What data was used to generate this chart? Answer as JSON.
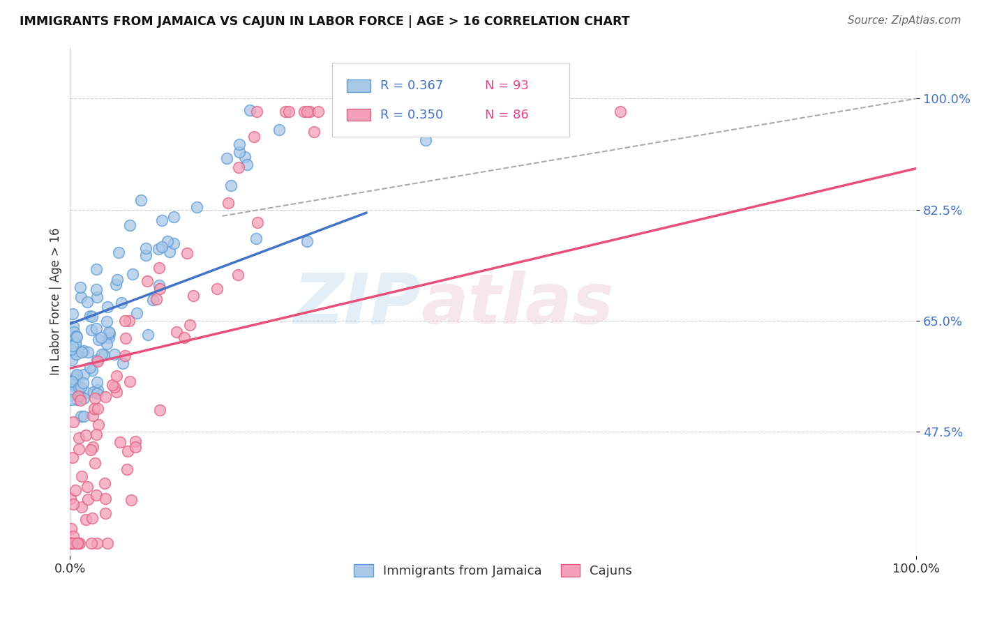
{
  "title": "IMMIGRANTS FROM JAMAICA VS CAJUN IN LABOR FORCE | AGE > 16 CORRELATION CHART",
  "source": "Source: ZipAtlas.com",
  "ylabel": "In Labor Force | Age > 16",
  "xlim": [
    0,
    1
  ],
  "ylim": [
    0.28,
    1.08
  ],
  "ytick_positions": [
    0.475,
    0.65,
    0.825,
    1.0
  ],
  "ytick_labels": [
    "47.5%",
    "65.0%",
    "82.5%",
    "100.0%"
  ],
  "xtick_positions": [
    0.0,
    1.0
  ],
  "xtick_labels": [
    "0.0%",
    "100.0%"
  ],
  "r_jamaica": 0.367,
  "n_jamaica": 93,
  "r_cajun": 0.35,
  "n_cajun": 86,
  "color_jamaica_fill": "#a8c8e8",
  "color_jamaica_edge": "#5b9bd5",
  "color_cajun_fill": "#f4a0b8",
  "color_cajun_edge": "#e06080",
  "color_jamaica_line": "#4472c4",
  "color_cajun_line": "#e8507a",
  "color_dashed": "#aaaaaa",
  "legend_r_color": "#4472c4",
  "legend_n_color": "#e84393",
  "blue_line_x0": 0.0,
  "blue_line_x1": 0.35,
  "blue_line_y0": 0.645,
  "blue_line_y1": 0.82,
  "pink_line_x0": 0.0,
  "pink_line_x1": 1.0,
  "pink_line_y0": 0.575,
  "pink_line_y1": 0.89,
  "dash_line_x0": 0.18,
  "dash_line_x1": 1.0,
  "dash_line_y0": 0.815,
  "dash_line_y1": 1.0,
  "seed_jamaica": 42,
  "seed_cajun": 99
}
